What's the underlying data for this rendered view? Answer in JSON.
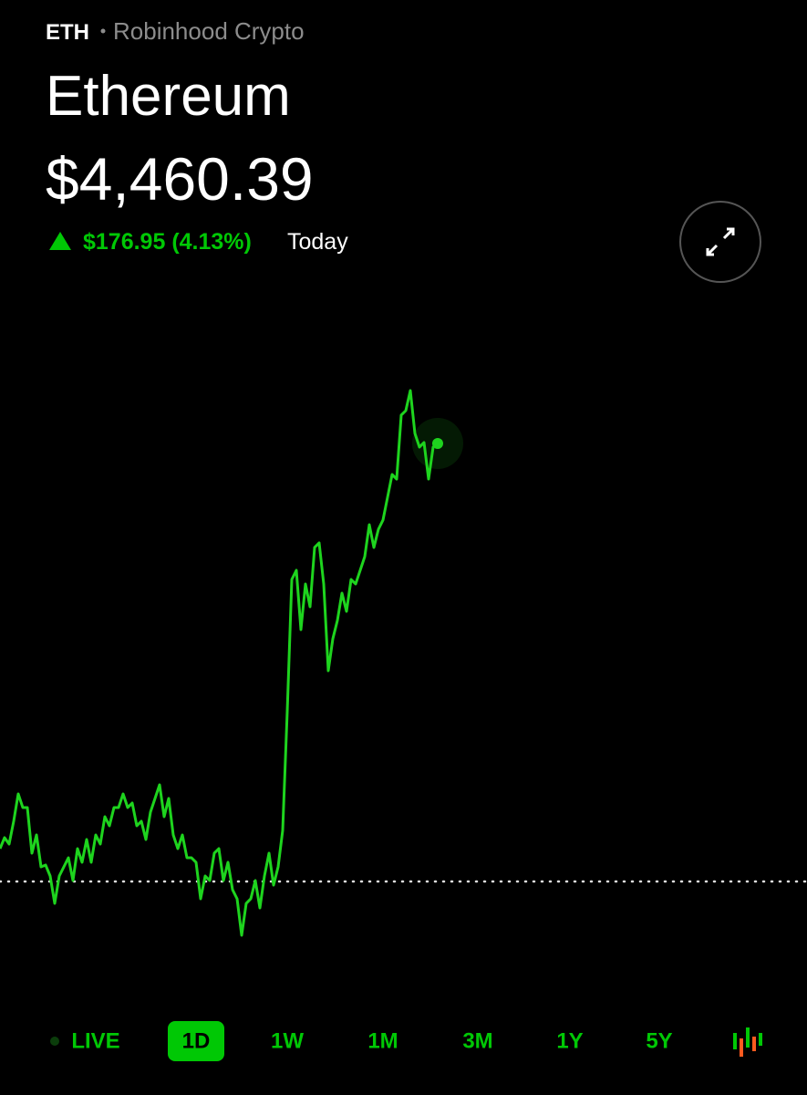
{
  "header": {
    "ticker": "ETH",
    "source": "Robinhood Crypto",
    "name": "Ethereum",
    "price": "$4,460.39",
    "change": "$176.95 (4.13%)",
    "period": "Today"
  },
  "chart_data": {
    "type": "line",
    "color": "#1ed41e",
    "baseline": 4283.44,
    "values": [
      4296.71,
      4301.14,
      4298.55,
      4307.77,
      4318.83,
      4313.3,
      4313.3,
      4294.87,
      4302.24,
      4289.34,
      4290.08,
      4285.65,
      4274.59,
      4285.65,
      4289.34,
      4293.02,
      4283.81,
      4296.71,
      4291.18,
      4300.4,
      4291.18,
      4302.24,
      4298.55,
      4309.61,
      4305.93,
      4313.3,
      4313.3,
      4318.83,
      4313.3,
      4315.14,
      4305.93,
      4307.77,
      4300.4,
      4311.46,
      4316.99,
      4322.52,
      4309.61,
      4316.99,
      4302.24,
      4296.71,
      4302.24,
      4293.02,
      4293.02,
      4291.18,
      4276.44,
      4285.65,
      4283.81,
      4294.87,
      4296.71,
      4283.81,
      4291.18,
      4280.12,
      4276.44,
      4261.69,
      4274.59,
      4276.44,
      4283.81,
      4272.75,
      4285.65,
      4294.87,
      4281.97,
      4289.34,
      4304.08,
      4352.01,
      4405.46,
      4409.15,
      4385.19,
      4403.62,
      4394.4,
      4418.37,
      4420.21,
      4403.62,
      4368.6,
      4381.5,
      4388.87,
      4399.93,
      4392.56,
      4405.46,
      4403.62,
      4409.15,
      4414.68,
      4427.58,
      4418.37,
      4425.74,
      4429.43,
      4438.64,
      4447.86,
      4446.01,
      4471.82,
      4473.66,
      4481.77,
      4464.45,
      4458.92,
      4460.76,
      4446.01,
      4458.92,
      4460.39
    ]
  },
  "ranges": {
    "items": [
      "LIVE",
      "1D",
      "1W",
      "1M",
      "3M",
      "1Y",
      "5Y"
    ],
    "selected": 1
  }
}
